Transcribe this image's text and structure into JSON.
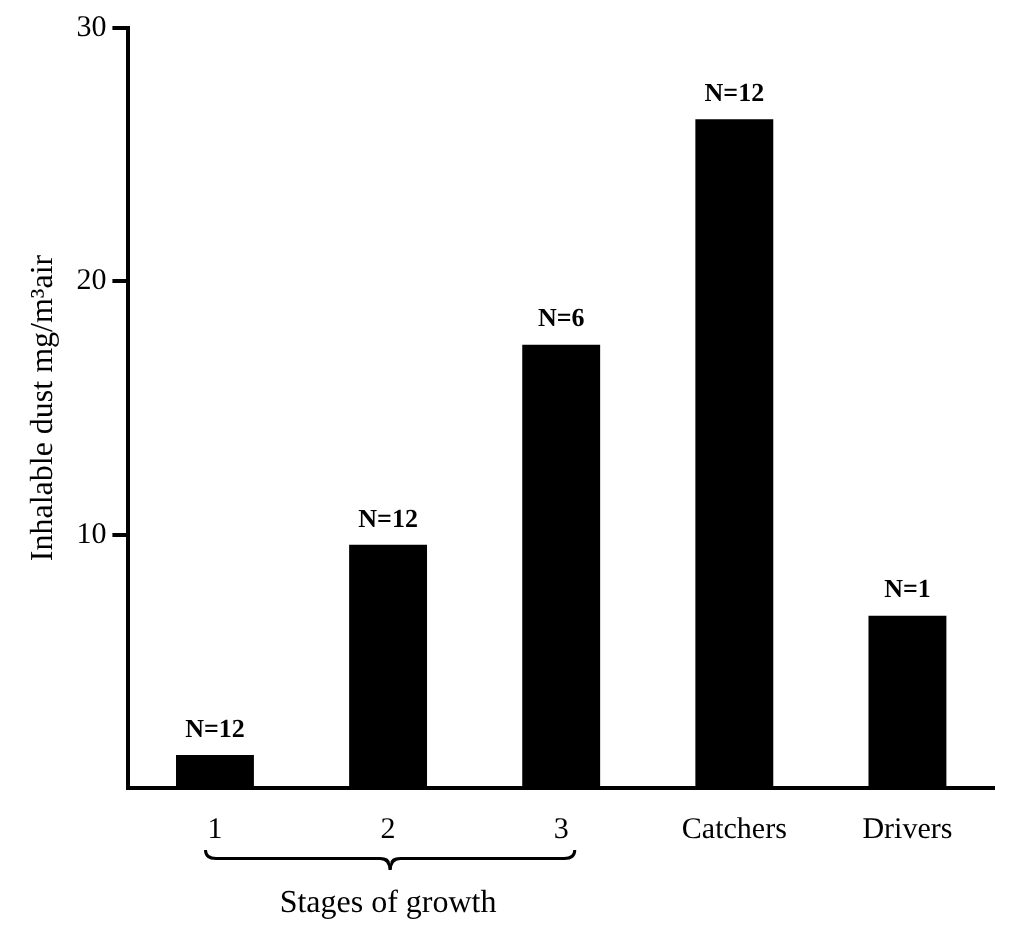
{
  "chart_data": {
    "type": "bar",
    "ylabel": "Inhalable dust mg/m³air",
    "categories": [
      "1",
      "2",
      "3",
      "Catchers",
      "Drivers"
    ],
    "values": [
      1.3,
      9.6,
      17.5,
      26.4,
      6.8
    ],
    "color": "#000000",
    "ylim": [
      0,
      30
    ],
    "yticks": [
      10,
      20,
      30
    ],
    "grid": false,
    "legend": false,
    "annotations": [
      {
        "text": "N=12",
        "x": "1",
        "y": 1.3
      },
      {
        "text": "N=12",
        "x": "2",
        "y": 9.6
      },
      {
        "text": "N=6",
        "x": "3",
        "y": 17.5
      },
      {
        "text": "N=12",
        "x": "Catchers",
        "y": 26.4
      },
      {
        "text": "N=1",
        "x": "Drivers",
        "y": 6.8
      },
      "Stages of growth"
    ]
  }
}
